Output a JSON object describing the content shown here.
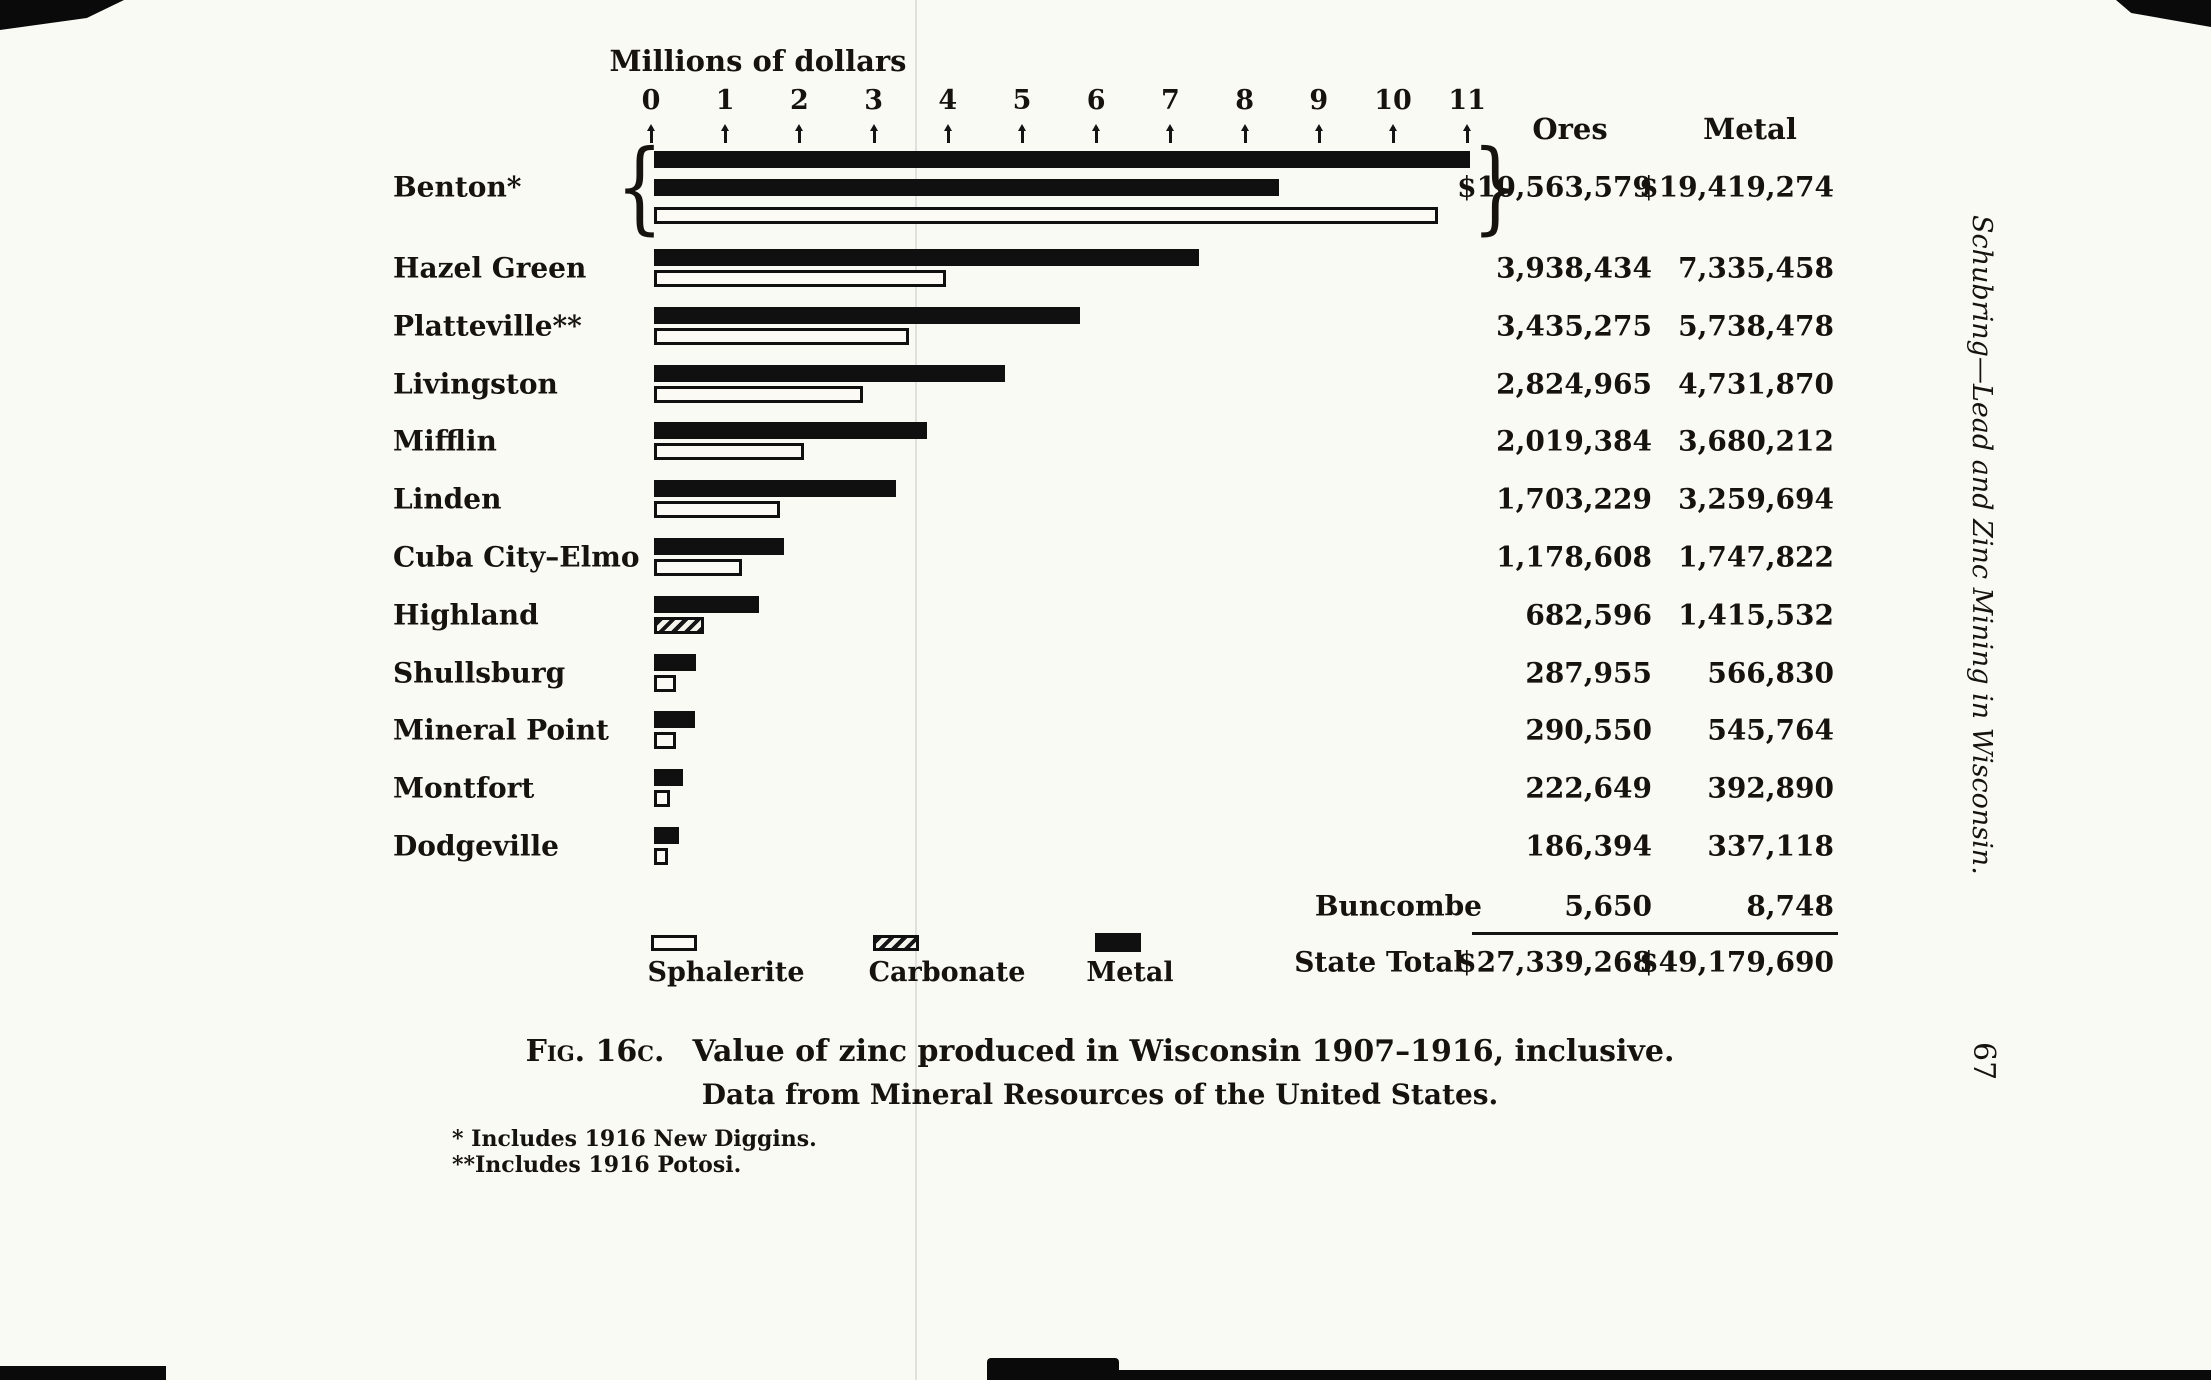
{
  "page": {
    "margin_title": "Schubring—Lead and Zinc Mining in Wisconsin.",
    "page_number": "67"
  },
  "axis": {
    "title": "Millions of dollars",
    "ticks": [
      "0",
      "1",
      "2",
      "3",
      "4",
      "5",
      "6",
      "7",
      "8",
      "9",
      "10",
      "11"
    ]
  },
  "columns": {
    "ores": "Ores",
    "metal": "Metal"
  },
  "rows": [
    {
      "label": "Benton*",
      "ores": "$10,563,579",
      "metal": "$19,419,274"
    },
    {
      "label": "Hazel Green",
      "ores": "3,938,434",
      "metal": "7,335,458"
    },
    {
      "label": "Platteville**",
      "ores": "3,435,275",
      "metal": "5,738,478"
    },
    {
      "label": "Livingston",
      "ores": "2,824,965",
      "metal": "4,731,870"
    },
    {
      "label": "Mifflin",
      "ores": "2,019,384",
      "metal": "3,680,212"
    },
    {
      "label": "Linden",
      "ores": "1,703,229",
      "metal": "3,259,694"
    },
    {
      "label": "Cuba City–Elmo",
      "ores": "1,178,608",
      "metal": "1,747,822"
    },
    {
      "label": "Highland",
      "ores": "682,596",
      "metal": "1,415,532"
    },
    {
      "label": "Shullsburg",
      "ores": "287,955",
      "metal": "566,830"
    },
    {
      "label": "Mineral Point",
      "ores": "290,550",
      "metal": "545,764"
    },
    {
      "label": "Montfort",
      "ores": "222,649",
      "metal": "392,890"
    },
    {
      "label": "Dodgeville",
      "ores": "186,394",
      "metal": "337,118"
    }
  ],
  "bars": [
    {
      "segments": [
        {
          "style": "metal",
          "m": 11.0
        },
        {
          "style": "metal",
          "m": 8.42
        },
        {
          "style": "sphalerite",
          "m": 10.56
        }
      ]
    },
    {
      "segments": [
        {
          "style": "metal",
          "m": 7.34
        },
        {
          "style": "sphalerite",
          "m": 3.94
        }
      ]
    },
    {
      "segments": [
        {
          "style": "metal",
          "m": 5.74
        },
        {
          "style": "sphalerite",
          "m": 3.44
        }
      ]
    },
    {
      "segments": [
        {
          "style": "metal",
          "m": 4.73
        },
        {
          "style": "sphalerite",
          "m": 2.82
        }
      ]
    },
    {
      "segments": [
        {
          "style": "metal",
          "m": 3.68
        },
        {
          "style": "sphalerite",
          "m": 2.02
        }
      ]
    },
    {
      "segments": [
        {
          "style": "metal",
          "m": 3.26
        },
        {
          "style": "sphalerite",
          "m": 1.7
        }
      ]
    },
    {
      "segments": [
        {
          "style": "metal",
          "m": 1.75
        },
        {
          "style": "sphalerite",
          "m": 1.18
        }
      ]
    },
    {
      "segments": [
        {
          "style": "metal",
          "m": 1.42
        },
        {
          "style": "carbonate",
          "m": 0.68
        }
      ]
    },
    {
      "segments": [
        {
          "style": "metal",
          "m": 0.57
        },
        {
          "style": "sphalerite",
          "m": 0.29
        }
      ]
    },
    {
      "segments": [
        {
          "style": "metal",
          "m": 0.55
        },
        {
          "style": "sphalerite",
          "m": 0.29
        }
      ]
    },
    {
      "segments": [
        {
          "style": "metal",
          "m": 0.39
        },
        {
          "style": "sphalerite",
          "m": 0.22
        }
      ]
    },
    {
      "segments": [
        {
          "style": "metal",
          "m": 0.34
        },
        {
          "style": "sphalerite",
          "m": 0.19
        }
      ]
    }
  ],
  "summary": {
    "buncombe": {
      "label": "Buncombe",
      "ores": "5,650",
      "metal": "8,748"
    },
    "state_total": {
      "label": "State Total",
      "ores": "$27,339,268",
      "metal": "$49,179,690"
    }
  },
  "legend": [
    {
      "label": "Sphalerite"
    },
    {
      "label": "Carbonate"
    },
    {
      "label": "Metal"
    }
  ],
  "caption": {
    "fig_label": "Fig. 16c.",
    "line1": "Value of zinc produced in Wisconsin 1907–1916, inclusive.",
    "line2": "Data from Mineral Resources of the United States."
  },
  "footnotes": [
    "* Includes 1916 New Diggins.",
    "**Includes 1916 Potosi."
  ],
  "chart_data": {
    "type": "bar",
    "orientation": "horizontal",
    "title": "Value of zinc produced in Wisconsin 1907–1916, inclusive",
    "source": "Data from Mineral Resources of the United States",
    "xlabel": "Millions of dollars",
    "xlim": [
      0,
      11
    ],
    "categories": [
      "Benton*",
      "Hazel Green",
      "Platteville**",
      "Livingston",
      "Mifflin",
      "Linden",
      "Cuba City–Elmo",
      "Highland",
      "Shullsburg",
      "Mineral Point",
      "Montfort",
      "Dodgeville",
      "Buncombe"
    ],
    "series": [
      {
        "name": "Ores",
        "values": [
          10563579,
          3938434,
          3435275,
          2824965,
          2019384,
          1703229,
          1178608,
          682596,
          287955,
          290550,
          222649,
          186394,
          5650
        ]
      },
      {
        "name": "Metal",
        "values": [
          19419274,
          7335458,
          5738478,
          4731870,
          3680212,
          3259694,
          1747822,
          1415532,
          566830,
          545764,
          392890,
          337118,
          8748
        ]
      }
    ],
    "totals": {
      "name": "State Total",
      "ores": 27339268,
      "metal": 49179690
    },
    "legend_entries": [
      "Sphalerite",
      "Carbonate",
      "Metal"
    ],
    "footnotes": [
      "* Includes 1916 New Diggins.",
      "**Includes 1916 Potosi."
    ]
  }
}
